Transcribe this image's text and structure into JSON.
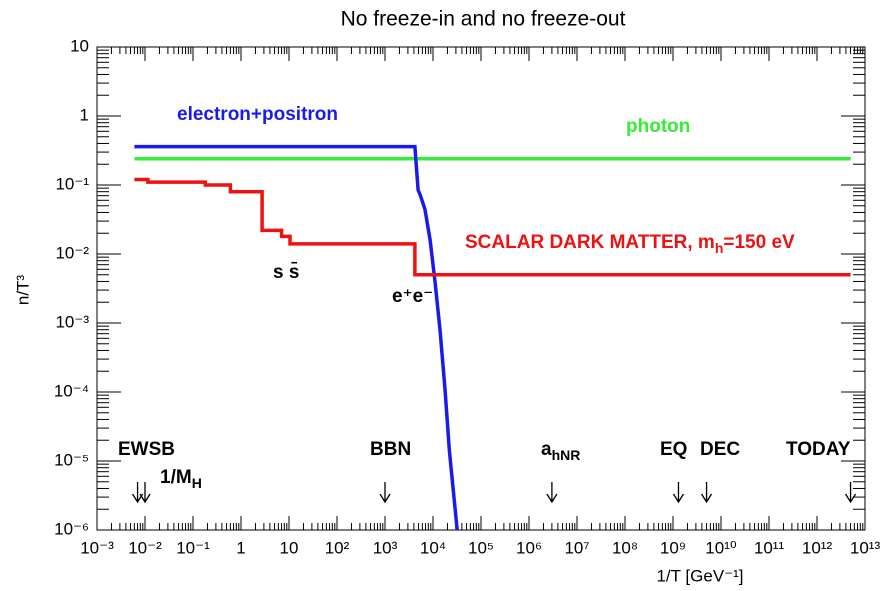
{
  "chart_data": {
    "type": "line",
    "title": "No freeze-in and no freeze-out",
    "xlabel": "1/T [GeV⁻¹]",
    "ylabel": "n/T³",
    "xscale": "log",
    "yscale": "log",
    "xlim": [
      0.001,
      10000000000000
    ],
    "ylim": [
      1e-06,
      10
    ],
    "xticks": [
      {
        "value": 0.001,
        "label": "10⁻³"
      },
      {
        "value": 0.01,
        "label": "10⁻²"
      },
      {
        "value": 0.1,
        "label": "10⁻¹"
      },
      1,
      10,
      {
        "value": 100,
        "label": "10²"
      },
      {
        "value": 1000,
        "label": "10³"
      },
      {
        "value": 10000,
        "label": "10⁴"
      },
      {
        "value": 100000,
        "label": "10⁵"
      },
      {
        "value": 1000000,
        "label": "10⁶"
      },
      {
        "value": 10000000,
        "label": "10⁷"
      },
      {
        "value": 100000000,
        "label": "10⁸"
      },
      {
        "value": 1000000000,
        "label": "10⁹"
      },
      {
        "value": 10000000000,
        "label": "10¹⁰"
      },
      {
        "value": 100000000000,
        "label": "10¹¹"
      },
      {
        "value": 1000000000000,
        "label": "10¹²"
      },
      {
        "value": 10000000000000,
        "label": "10¹³"
      }
    ],
    "yticks": [
      {
        "value": 1e-06,
        "label": "10⁻⁶"
      },
      {
        "value": 1e-05,
        "label": "10⁻⁵"
      },
      {
        "value": 0.0001,
        "label": "10⁻⁴"
      },
      {
        "value": 0.001,
        "label": "10⁻³"
      },
      {
        "value": 0.01,
        "label": "10⁻²"
      },
      {
        "value": 0.1,
        "label": "10⁻¹"
      },
      1,
      10
    ],
    "series": [
      {
        "color": "#33ee33",
        "x": [
          0.006,
          5000000000000
        ],
        "values": [
          0.24,
          0.24
        ]
      },
      {
        "color": "#1a1aee",
        "x": [
          0.006,
          4200,
          4900,
          5500,
          6800,
          8700,
          11000,
          14000,
          17800,
          22000,
          32000
        ],
        "values": [
          0.36,
          0.36,
          0.085,
          0.07,
          0.044,
          0.016,
          0.004,
          0.0008,
          0.00011,
          1.4e-05,
          1e-06
        ]
      },
      {
        "color": "#ee1111",
        "x": [
          0.006,
          0.0115,
          0.0115,
          0.18,
          0.18,
          0.6,
          0.6,
          2.75,
          2.75,
          7,
          7,
          10.5,
          10.5,
          4200,
          4200,
          5000000000000
        ],
        "values": [
          0.12,
          0.12,
          0.11,
          0.11,
          0.1,
          0.1,
          0.08,
          0.08,
          0.022,
          0.022,
          0.018,
          0.018,
          0.014,
          0.014,
          0.005,
          0.005
        ]
      }
    ],
    "annotations": [
      {
        "text": "electron+positron",
        "color": "#1a1aee"
      },
      {
        "text": "photon",
        "color": "#33ee33"
      },
      {
        "text": "SCALAR DARK MATTER, m",
        "sub": "h",
        "tail": "=150 eV",
        "color": "#ee1111"
      },
      {
        "text": "s s̄",
        "color": "#000000"
      },
      {
        "text": "e⁺e⁻",
        "color": "#000000"
      },
      {
        "text": "EWSB",
        "color": "#000000"
      },
      {
        "text": "1/M",
        "sub": "H",
        "color": "#000000"
      },
      {
        "text": "BBN",
        "color": "#000000"
      },
      {
        "text": "a",
        "sub": "hNR",
        "color": "#000000"
      },
      {
        "text": "EQ",
        "color": "#000000"
      },
      {
        "text": "DEC",
        "color": "#000000"
      },
      {
        "text": "TODAY",
        "color": "#000000"
      }
    ],
    "arrows": [
      0.007,
      0.01,
      1000,
      3000000,
      1300000000,
      5000000000,
      5000000000000
    ]
  }
}
